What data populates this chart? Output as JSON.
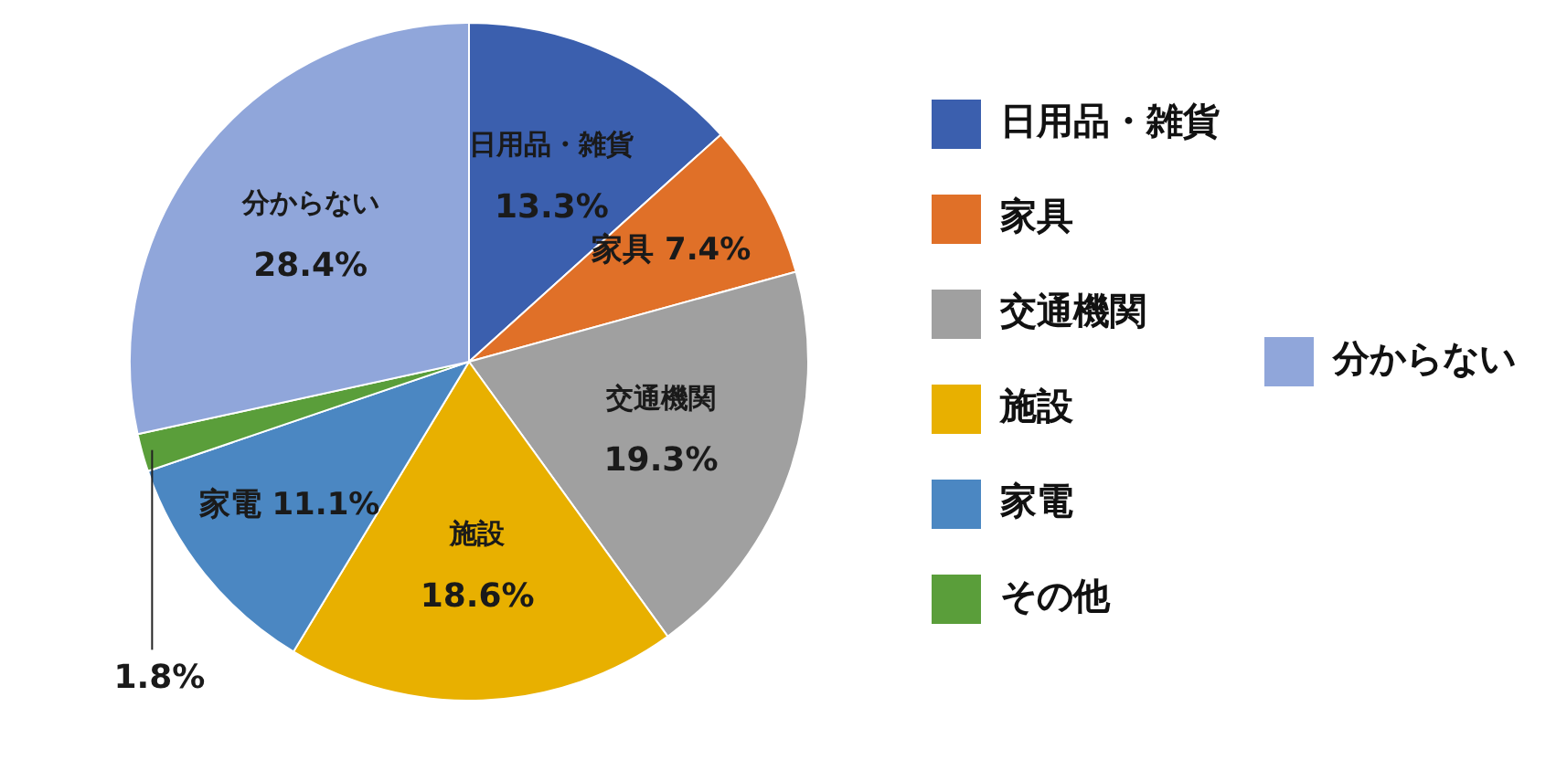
{
  "chart_data": {
    "type": "pie",
    "categories": [
      "日用品・雑貨",
      "家具",
      "交通機関",
      "施設",
      "家電",
      "その他",
      "分からない"
    ],
    "values": [
      13.3,
      7.4,
      19.3,
      18.6,
      11.1,
      1.8,
      28.4
    ],
    "colors": [
      "#3b5fae",
      "#e07028",
      "#a0a0a0",
      "#e8b000",
      "#4b87c2",
      "#5a9e3a",
      "#90a6da"
    ],
    "value_labels": [
      "13.3%",
      "7.4%",
      "19.3%",
      "18.6%",
      "11.1%",
      "1.8%",
      "28.4%"
    ],
    "legend": "right"
  }
}
